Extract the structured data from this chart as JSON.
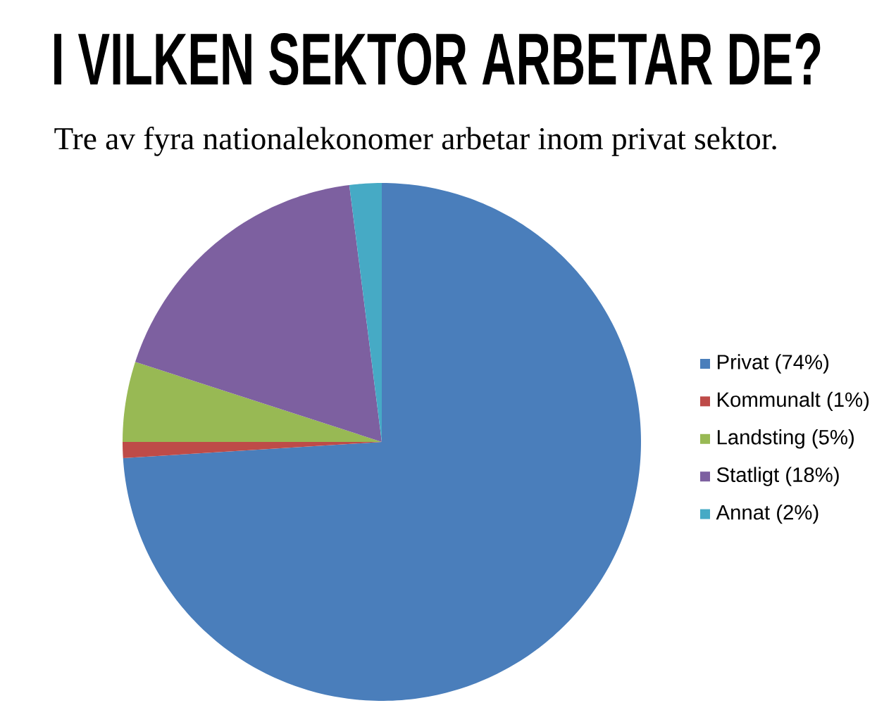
{
  "chart_data": {
    "type": "pie",
    "title": "I VILKEN SEKTOR ARBETAR DE?",
    "subtitle": "Tre av fyra nationalekonomer arbetar inom privat sektor.",
    "categories": [
      "Privat (74%)",
      "Kommunalt (1%)",
      "Landsting (5%)",
      "Statligt (18%)",
      "Annat (2%)"
    ],
    "values": [
      74,
      1,
      5,
      18,
      2
    ],
    "colors": [
      "#4a7ebb",
      "#be4b48",
      "#98b954",
      "#7d60a0",
      "#46aac5"
    ],
    "legend": "right"
  }
}
